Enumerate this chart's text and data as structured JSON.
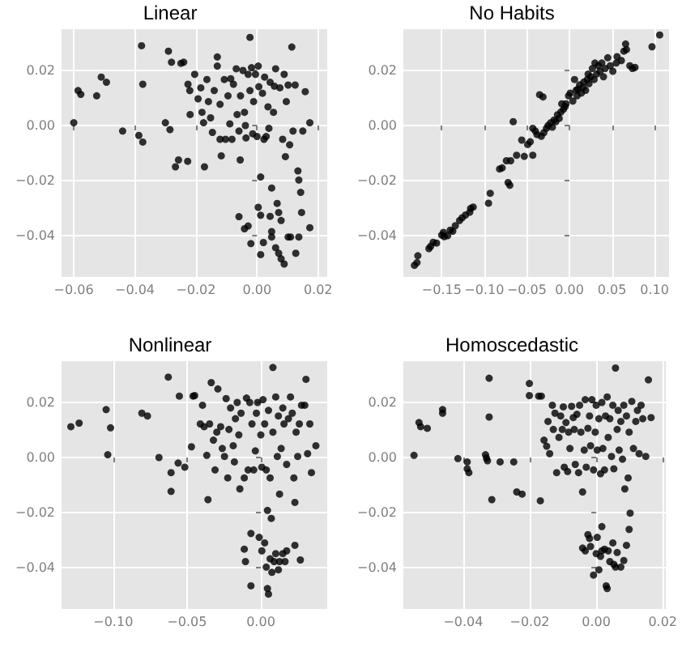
{
  "chart_data": [
    {
      "type": "scatter",
      "title": "Linear",
      "xlim": [
        -0.064,
        0.023
      ],
      "ylim": [
        -0.055,
        0.035
      ],
      "grid": true,
      "marker": "circle",
      "xticks": [
        {
          "value": -0.06,
          "label": "−0.06"
        },
        {
          "value": -0.04,
          "label": "−0.04"
        },
        {
          "value": -0.02,
          "label": "−0.02"
        },
        {
          "value": 0,
          "label": "0.00"
        },
        {
          "value": 0.02,
          "label": "0.02"
        }
      ],
      "yticks": [
        {
          "value": -0.04,
          "label": "−0.04"
        },
        {
          "value": -0.02,
          "label": "−0.02"
        },
        {
          "value": 0,
          "label": "0.00"
        },
        {
          "value": 0.02,
          "label": "0.02"
        }
      ],
      "series": [
        {
          "color": "#000000",
          "x": [
            -0.06,
            -0.0586,
            -0.0577,
            -0.0525,
            -0.051,
            -0.0493,
            -0.044,
            -0.0387,
            -0.0374,
            -0.0378,
            -0.0374,
            -0.03,
            -0.0285,
            -0.029,
            -0.028,
            -0.0257,
            -0.0267,
            -0.0249,
            -0.024,
            -0.0227,
            -0.0226,
            -0.022,
            -0.0219,
            -0.0204,
            -0.0193,
            -0.0184,
            -0.018,
            -0.0175,
            -0.0172,
            -0.0164,
            -0.0159,
            -0.0152,
            -0.0146,
            -0.014,
            -0.013,
            -0.013,
            -0.0121,
            -0.0121,
            -0.0117,
            -0.0107,
            -0.0103,
            -0.0095,
            -0.0089,
            -0.0086,
            -0.0082,
            -0.0077,
            -0.0068,
            -0.0065,
            -0.0059,
            -0.0055,
            -0.0054,
            -0.0046,
            -0.0041,
            -0.0038,
            -0.0036,
            -0.0029,
            -0.0023,
            -0.0023,
            -0.0018,
            -0.0014,
            -0.0011,
            -0.0005,
            0,
            0.0004,
            0.0006,
            0.0012,
            0.0018,
            0.0023,
            0.0025,
            0.003,
            0.0036,
            0.0039,
            0.0043,
            0.0048,
            0.0054,
            0.0057,
            0.0061,
            0.0066,
            0.0071,
            0.0075,
            0.0079,
            0.0084,
            0.0089,
            0.0093,
            0.0096,
            0.0102,
            0.0107,
            0.011,
            0.0114,
            0.0118,
            0.0125,
            0.0134,
            0.0137,
            0.0143,
            0.0146,
            0.015,
            0.0158,
            0.0173,
            0.0173,
            -0.0059,
            -0.0041,
            -0.0029,
            -0.002,
            0.0004,
            0.0012,
            0.0012,
            0.0021,
            0.0043,
            0.0048,
            0.0061,
            0.0071,
            0.0079,
            0.0089,
            0.0102,
            0.0127,
            0.0137,
            0.0048
          ],
          "values": [
            0.001,
            0.0127,
            0.0113,
            0.0108,
            0.0176,
            0.0157,
            -0.002,
            -0.0036,
            -0.006,
            0.029,
            0.015,
            0.001,
            -0.0015,
            0.027,
            0.023,
            -0.0125,
            -0.015,
            0.0226,
            0.023,
            -0.013,
            0.015,
            0.0127,
            0.004,
            0.0186,
            0.0097,
            0.0137,
            0.0048,
            0.001,
            -0.015,
            0.0167,
            0.0087,
            0.0028,
            -0.0025,
            0.0127,
            0.0249,
            0.0216,
            0.0077,
            -0.005,
            -0.011,
            0.0167,
            -0.005,
            0.0108,
            0.0006,
            0.017,
            -0.005,
            0.015,
            0.0206,
            0.004,
            -0.002,
            -0.0125,
            0.0108,
            0.02,
            0.0048,
            0,
            -0.0045,
            0.0186,
            0.032,
            0.0127,
            0.021,
            -0.003,
            0.0087,
            0.0186,
            -0.004,
            0.0216,
            0.0141,
            -0.0187,
            0.0117,
            -0.005,
            0.0176,
            -0.004,
            0.0068,
            -0.001,
            0.0157,
            -0.0227,
            0.0048,
            0.0143,
            0.0206,
            -0.0283,
            -0.0316,
            0.0137,
            -0.0345,
            -0.005,
            0.0186,
            -0.0113,
            0.0087,
            0.0147,
            -0.007,
            -0.0405,
            0.0285,
            -0.002,
            0.0147,
            -0.0165,
            -0.0198,
            -0.0243,
            -0.0316,
            -0.002,
            0.0123,
            0.001,
            -0.0371,
            -0.0331,
            -0.0375,
            -0.0365,
            -0.0429,
            -0.0297,
            -0.0326,
            -0.0469,
            -0.0425,
            -0.033,
            -0.0405,
            -0.0444,
            -0.0464,
            -0.0484,
            -0.0503,
            -0.0405,
            -0.0464,
            -0.0405,
            -0.0385
          ]
        }
      ]
    },
    {
      "type": "scatter",
      "title": "No Habits",
      "xlim": [
        -0.195,
        0.117
      ],
      "ylim": [
        -0.055,
        0.035
      ],
      "grid": true,
      "marker": "circle",
      "xticks": [
        {
          "value": -0.15,
          "label": "−0.15"
        },
        {
          "value": -0.1,
          "label": "−0.10"
        },
        {
          "value": -0.05,
          "label": "−0.05"
        },
        {
          "value": 0,
          "label": "0.00"
        },
        {
          "value": 0.05,
          "label": "0.05"
        },
        {
          "value": 0.1,
          "label": "0.10"
        }
      ],
      "yticks": [
        {
          "value": -0.04,
          "label": "−0.04"
        },
        {
          "value": -0.02,
          "label": "−0.02"
        },
        {
          "value": 0,
          "label": "0.00"
        },
        {
          "value": 0.02,
          "label": "0.02"
        }
      ],
      "series": [
        {
          "color": "#000000",
          "x": [
            -0.182,
            -0.179,
            -0.178,
            -0.165,
            -0.163,
            -0.16,
            -0.156,
            -0.15,
            -0.148,
            -0.147,
            -0.143,
            -0.14,
            -0.137,
            -0.134,
            -0.129,
            -0.126,
            -0.122,
            -0.117,
            -0.116,
            -0.113,
            -0.095,
            -0.093,
            -0.082,
            -0.079,
            -0.074,
            -0.072,
            -0.07,
            -0.069,
            -0.066,
            -0.062,
            -0.056,
            -0.053,
            -0.049,
            -0.046,
            -0.043,
            -0.043,
            -0.04,
            -0.038,
            -0.035,
            -0.033,
            -0.031,
            -0.03,
            -0.027,
            -0.025,
            -0.022,
            -0.02,
            -0.018,
            -0.016,
            -0.014,
            -0.012,
            -0.01,
            -0.009,
            -0.007,
            -0.005,
            -0.004,
            -0.001,
            0.001,
            0.004,
            0.006,
            0.008,
            0.009,
            0.01,
            0.012,
            0.014,
            0.016,
            0.017,
            0.019,
            0.021,
            0.022,
            0.023,
            0.025,
            0.027,
            0.029,
            0.03,
            0.032,
            0.034,
            0.036,
            0.038,
            0.04,
            0.042,
            0.045,
            0.048,
            0.051,
            0.055,
            0.056,
            0.061,
            0.064,
            0.066,
            0.067,
            0.071,
            0.074,
            0.077,
            0.097,
            0.106
          ],
          "values": [
            -0.0508,
            -0.0498,
            -0.0473,
            -0.0447,
            -0.0439,
            -0.0424,
            -0.0427,
            -0.0398,
            -0.0388,
            -0.0404,
            -0.04,
            -0.038,
            -0.0384,
            -0.0364,
            -0.0345,
            -0.0335,
            -0.0325,
            -0.0315,
            -0.0301,
            -0.0296,
            -0.0282,
            -0.0246,
            -0.0158,
            -0.0154,
            -0.0128,
            -0.0207,
            -0.0217,
            -0.0128,
            0.0014,
            -0.0108,
            -0.0053,
            -0.0112,
            -0.0069,
            -0.0059,
            -0.001,
            -0.0108,
            -0.002,
            -0.0033,
            0.0112,
            -0.0039,
            0.0104,
            -0.0026,
            -0.001,
            0,
            0.001,
            -0.0006,
            0.002,
            0.0014,
            0.0039,
            0.0026,
            0.0049,
            0.0079,
            0.0059,
            0.0069,
            0.0079,
            0.0108,
            0.0118,
            0.0089,
            0.0167,
            0.0128,
            0.0108,
            0.0132,
            0.0148,
            0.0118,
            0.0138,
            0.0158,
            0.0128,
            0.0167,
            0.0187,
            0.0152,
            0.0177,
            0.0207,
            0.0167,
            0.0227,
            0.0187,
            0.0217,
            0.0197,
            0.0227,
            0.0177,
            0.0207,
            0.0246,
            0.0217,
            0.0197,
            0.0227,
            0.025,
            0.0236,
            0.027,
            0.0296,
            0.0276,
            0.0217,
            0.0207,
            0.0211,
            0.0286,
            0.0329
          ]
        }
      ]
    },
    {
      "type": "scatter",
      "title": "Nonlinear",
      "xlim": [
        -0.135,
        0.045
      ],
      "ylim": [
        -0.055,
        0.035
      ],
      "grid": true,
      "marker": "circle",
      "xticks": [
        {
          "value": -0.1,
          "label": "−0.10"
        },
        {
          "value": -0.05,
          "label": "−0.05"
        },
        {
          "value": 0,
          "label": "0.00"
        }
      ],
      "yticks": [
        {
          "value": -0.04,
          "label": "−0.04"
        },
        {
          "value": -0.02,
          "label": "−0.02"
        },
        {
          "value": 0,
          "label": "0.00"
        },
        {
          "value": 0.02,
          "label": "0.02"
        }
      ],
      "series": [
        {
          "color": "#000000",
          "x": [
            -0.1287,
            -0.1231,
            -0.1048,
            -0.1037,
            -0.1018,
            -0.0806,
            -0.0768,
            -0.069,
            -0.0627,
            -0.0608,
            -0.0608,
            -0.056,
            -0.0552,
            -0.0515,
            -0.047,
            -0.0459,
            -0.0448,
            -0.041,
            -0.0395,
            -0.0384,
            -0.0366,
            -0.0358,
            -0.0347,
            -0.0336,
            -0.0321,
            -0.031,
            -0.0298,
            -0.0291,
            -0.0272,
            -0.0261,
            -0.0246,
            -0.0235,
            -0.0224,
            -0.0216,
            -0.0205,
            -0.0187,
            -0.0179,
            -0.0172,
            -0.016,
            -0.0149,
            -0.0142,
            -0.0134,
            -0.0112,
            -0.0097,
            -0.0086,
            -0.0075,
            -0.006,
            -0.0048,
            -0.0037,
            -0.003,
            -0.0022,
            0,
            0.0007,
            0.0015,
            0.0026,
            0.0037,
            0.0045,
            0.0052,
            0.0063,
            0.0071,
            0.0082,
            0.0082,
            0.0101,
            0.0112,
            0.0119,
            0.0127,
            0.0138,
            0.0149,
            0.0157,
            0.0175,
            0.0187,
            0.0201,
            0.0213,
            0.0224,
            0.0231,
            0.0239,
            0.025,
            0.0261,
            0.0276,
            0.0298,
            0.0306,
            0.0317,
            0.0332,
            0.0343,
            0.0373,
            -0.0112,
            -0.0104,
            -0.0067,
            -0.0067,
            -0.0011,
            0.0007,
            0.0026,
            0.0037,
            0.0045,
            0.0052,
            0.0063,
            0.0075,
            0.009,
            0.0101,
            0.0119,
            0.0127,
            0.0149,
            0.0164,
            0.0175,
            0.0231,
            0.0268
          ],
          "values": [
            0.0112,
            0.0125,
            0.0174,
            0.001,
            0.0108,
            0.0161,
            0.0151,
            0,
            0.0292,
            -0.0055,
            -0.0123,
            -0.002,
            0.0223,
            -0.0035,
            0.0039,
            0.0223,
            0.0225,
            0.0122,
            0.019,
            0.0112,
            0.0008,
            -0.0153,
            0.0122,
            0.0272,
            0.0063,
            -0.0045,
            0.0092,
            0.0249,
            0.0112,
            0.0033,
            0.0004,
            0.0214,
            -0.0074,
            0.0102,
            0.018,
            0.0043,
            -0.0016,
            0.0141,
            0.02,
            0.0082,
            -0.0114,
            0.0161,
            -0.0074,
            0.0216,
            -0.0045,
            0.02,
            0.0122,
            -0.0045,
            0.0024,
            0.0161,
            0.02,
            0.0082,
            -0.0035,
            0.021,
            0.0122,
            -0.0045,
            -0.0192,
            0.0171,
            -0.0074,
            -0.0221,
            0.0327,
            0.0092,
            0.022,
            0.0004,
            0.0151,
            -0.0133,
            0.0033,
            0.018,
            0.0122,
            -0.0025,
            0.0141,
            0.022,
            0.0161,
            -0.0074,
            -0.0163,
            0.0092,
            0.0004,
            0.0122,
            0.019,
            0.019,
            0.0284,
            0.0014,
            0.0122,
            -0.0055,
            0.0043,
            -0.0333,
            -0.0378,
            -0.0466,
            -0.0276,
            -0.029,
            -0.0339,
            -0.031,
            -0.0398,
            -0.0476,
            -0.0496,
            -0.0368,
            -0.0417,
            -0.0378,
            -0.0349,
            -0.0408,
            -0.0378,
            -0.0349,
            -0.0378,
            -0.0339,
            -0.0319,
            -0.0372
          ]
        }
      ]
    },
    {
      "type": "scatter",
      "title": "Homoscedastic",
      "xlim": [
        -0.058,
        0.021
      ],
      "ylim": [
        -0.055,
        0.035
      ],
      "grid": true,
      "marker": "circle",
      "xticks": [
        {
          "value": -0.04,
          "label": "−0.04"
        },
        {
          "value": -0.02,
          "label": "−0.02"
        },
        {
          "value": 0,
          "label": "0.00"
        },
        {
          "value": 0.02,
          "label": "0.02"
        }
      ],
      "yticks": [
        {
          "value": -0.04,
          "label": "−0.04"
        },
        {
          "value": -0.02,
          "label": "−0.02"
        },
        {
          "value": 0,
          "label": "0.00"
        },
        {
          "value": 0.02,
          "label": "0.02"
        }
      ],
      "series": [
        {
          "color": "#000000",
          "x": [
            -0.0548,
            -0.0533,
            -0.0528,
            -0.0508,
            -0.0462,
            -0.0462,
            -0.0416,
            -0.0388,
            -0.0388,
            -0.0383,
            -0.0333,
            -0.033,
            -0.0327,
            -0.0322,
            -0.0322,
            -0.0314,
            -0.0289,
            -0.0248,
            -0.0239,
            -0.0223,
            -0.0201,
            -0.0201,
            -0.0173,
            -0.0168,
            -0.0165,
            -0.0157,
            -0.0149,
            -0.014,
            -0.0145,
            -0.0132,
            -0.0129,
            -0.0124,
            -0.0119,
            -0.0112,
            -0.0107,
            -0.0102,
            -0.0099,
            -0.0096,
            -0.0091,
            -0.0086,
            -0.0083,
            -0.0079,
            -0.0074,
            -0.0069,
            -0.0066,
            -0.0063,
            -0.0058,
            -0.0053,
            -0.005,
            -0.0046,
            -0.0041,
            -0.0036,
            -0.0033,
            -0.003,
            -0.0025,
            -0.002,
            -0.0017,
            -0.0013,
            -0.0008,
            -0.0003,
            0,
            0.0003,
            0.0008,
            0.0013,
            0.0017,
            0.002,
            0.0025,
            0.0028,
            0.0033,
            0.0036,
            0.0041,
            0.0046,
            0.005,
            0.0053,
            0.0058,
            0.0063,
            0.0066,
            0.0069,
            0.0074,
            0.0079,
            0.0083,
            0.0086,
            0.0091,
            0.0096,
            0.0099,
            0.0102,
            0.0107,
            0.0112,
            0.0119,
            0.0124,
            0.0129,
            0.0135,
            0.014,
            0.0149,
            0.0157,
            0.0165,
            -0.0041,
            -0.0033,
            -0.0025,
            -0.002,
            -0.0017,
            -0.0008,
            0,
            0.0003,
            0.0008,
            0.0013,
            0.0017,
            0.0025,
            0.003,
            0.0033,
            0.0036,
            0.0041,
            0.005,
            0.0053,
            0.0058,
            0.0063,
            0.0074,
            0.0083,
            0.0091,
            0.0099,
            0.0017
          ],
          "values": [
            0.0008,
            0.0127,
            0.0112,
            0.0106,
            0.0174,
            0.0161,
            -0.0004,
            -0.0016,
            -0.0041,
            -0.0055,
            0.001,
            -0.0002,
            -0.0012,
            0.0288,
            0.0147,
            -0.0153,
            -0.0016,
            -0.0016,
            -0.0125,
            -0.0133,
            0.0269,
            0.0225,
            0.0223,
            -0.0157,
            0.0223,
            0.0063,
            0.0041,
            0.0014,
            0.0131,
            0.019,
            0.0102,
            0.0161,
            -0.0055,
            0.0073,
            0.0151,
            0.0102,
            0.0184,
            -0.0035,
            0.0127,
            -0.0051,
            0.0092,
            0.0033,
            0.0186,
            0.0145,
            0.0102,
            -0.0025,
            0.0157,
            -0.0055,
            0.019,
            0.0092,
            -0.0125,
            0.0027,
            0.021,
            -0.0035,
            0.0106,
            0.0151,
            0.0043,
            0.021,
            -0.0045,
            0.0092,
            0.019,
            0.0027,
            0.0141,
            -0.0059,
            0.02,
            0.0033,
            -0.0045,
            0.0151,
            0.022,
            0.0073,
            0.0141,
            0.0004,
            0.019,
            -0.0041,
            0.0325,
            0.0102,
            0.0171,
            0.0027,
            0.0131,
            -0.0006,
            0.019,
            -0.0114,
            0.0151,
            -0.0074,
            0.0092,
            -0.0202,
            0.0204,
            0.0033,
            0.0131,
            0.0171,
            0.0014,
            0.019,
            0.0141,
            0.0004,
            0.0282,
            0.0145,
            -0.0329,
            -0.0339,
            -0.028,
            -0.0294,
            -0.0323,
            -0.0427,
            -0.0349,
            -0.029,
            -0.0408,
            -0.0359,
            -0.0339,
            -0.0333,
            -0.0466,
            -0.0476,
            -0.0339,
            -0.0378,
            -0.031,
            -0.0388,
            -0.0398,
            -0.0345,
            -0.0398,
            -0.0374,
            -0.0319,
            -0.0261,
            -0.0251
          ]
        }
      ]
    }
  ]
}
